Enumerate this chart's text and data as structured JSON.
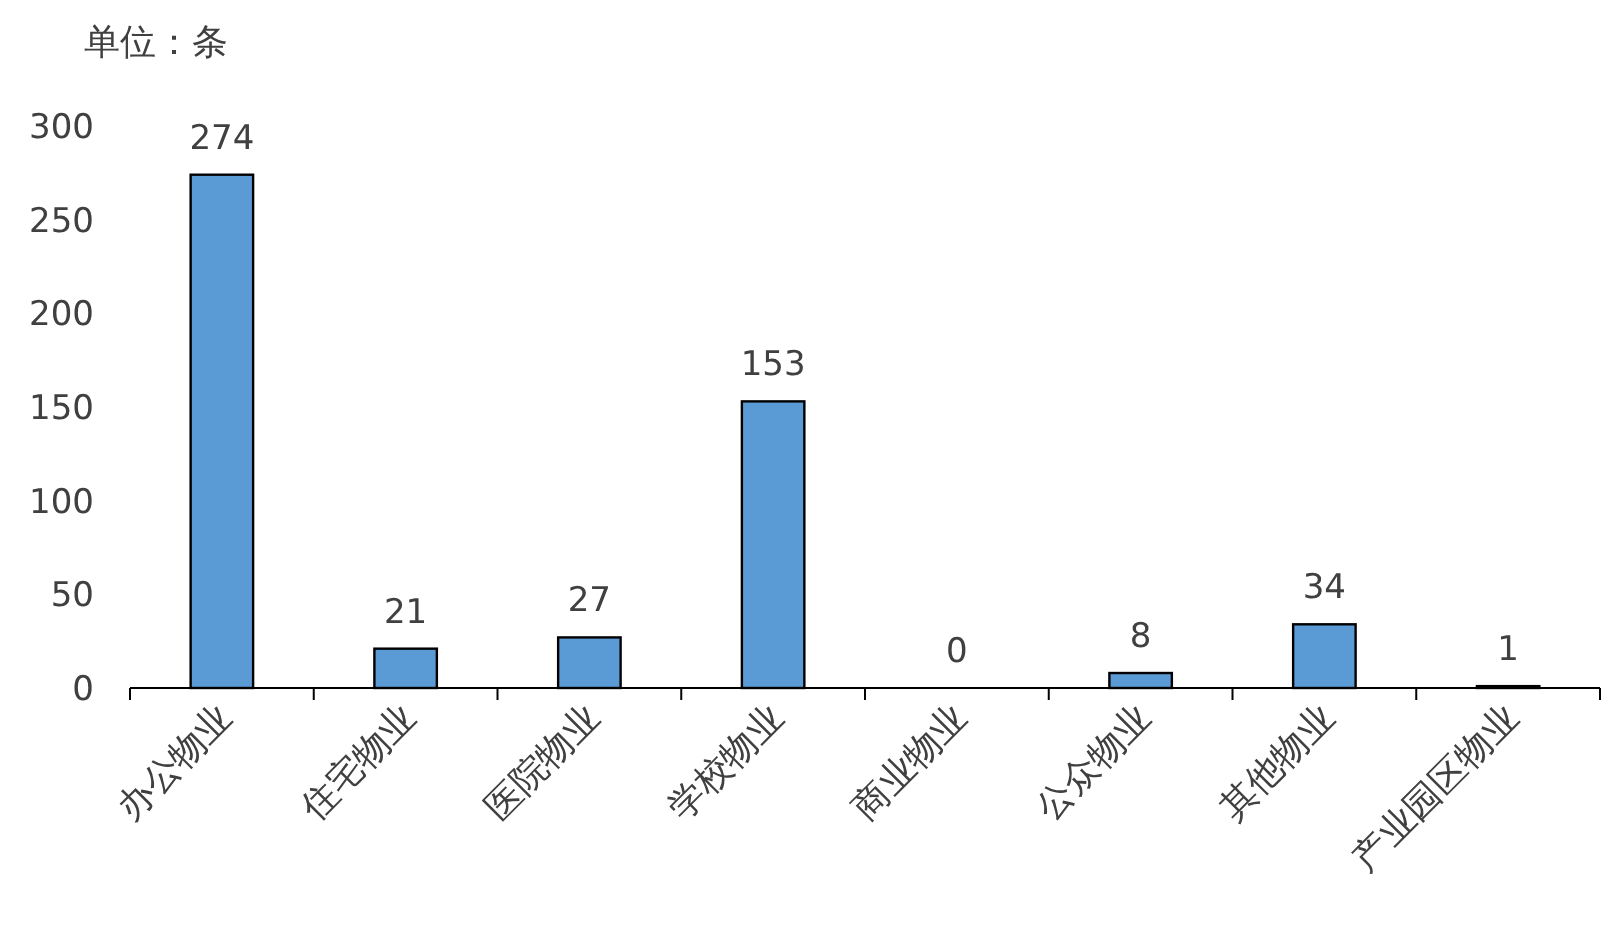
{
  "chart_data": {
    "type": "bar",
    "ylabel": "单位：条",
    "categories": [
      "办公物业",
      "住宅物业",
      "医院物业",
      "学校物业",
      "商业物业",
      "公众物业",
      "其他物业",
      "产业园区物业"
    ],
    "values": [
      274,
      21,
      27,
      153,
      0,
      8,
      34,
      1
    ],
    "color": "#5b9bd5",
    "ylim": [
      0,
      300
    ],
    "yticks": [
      0,
      50,
      100,
      150,
      200,
      250,
      300
    ],
    "data_labels": true,
    "grid": false
  }
}
